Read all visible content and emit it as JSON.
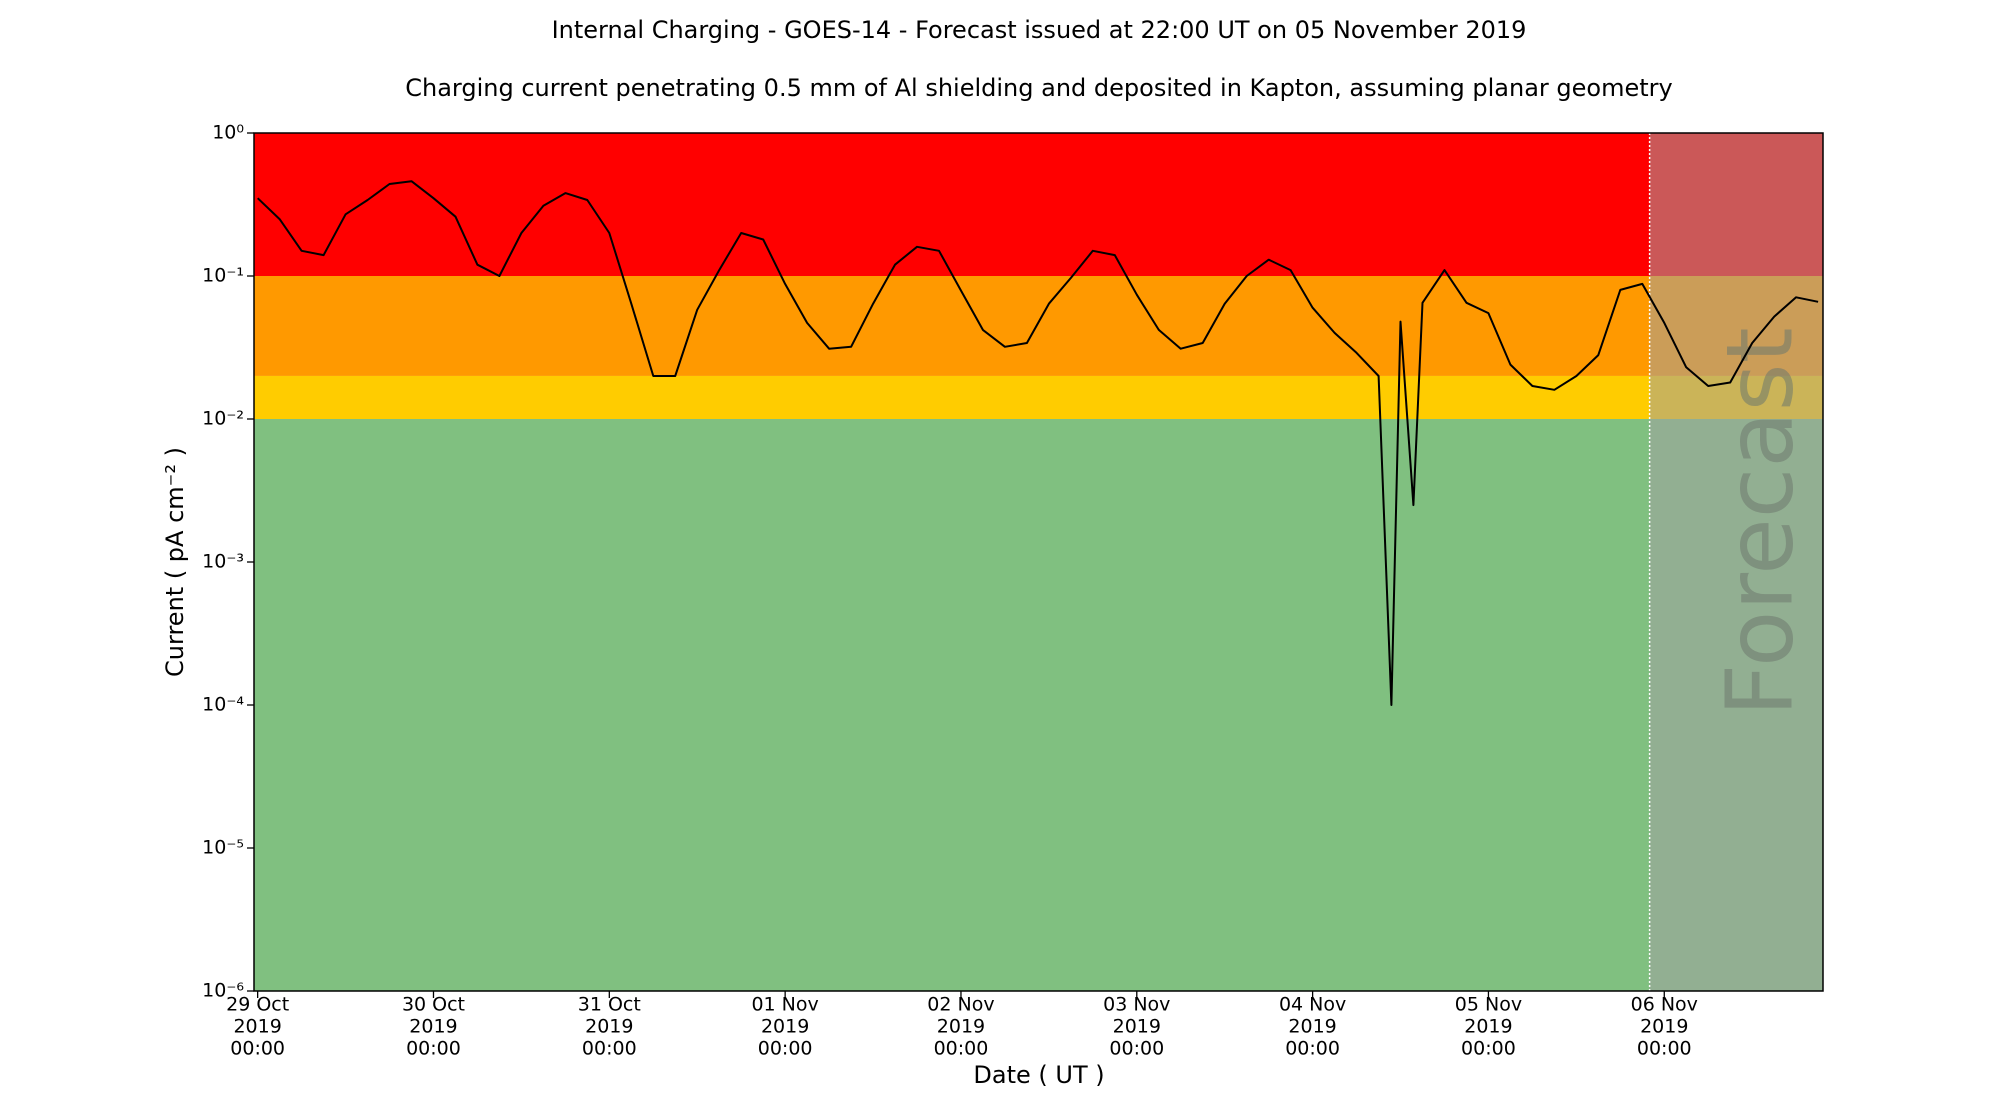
{
  "chart_data": {
    "type": "line",
    "title": "Internal Charging - GOES-14 - Forecast issued at 22:00 UT on 05 November 2019",
    "subtitle": "Charging current penetrating 0.5 mm of Al shielding and deposited in Kapton, assuming planar geometry",
    "x_label": "Date ( UT )",
    "y_label": "Current ( pA cm⁻² )",
    "log_y": true,
    "color": "#000000",
    "bands": [
      {
        "from": 0.1,
        "to": 1,
        "color": "#ff0000"
      },
      {
        "from": 0.02,
        "to": 0.1,
        "color": "#ff9900"
      },
      {
        "from": 0.01,
        "to": 0.02,
        "color": "#ffcc00"
      },
      {
        "from": 1e-06,
        "to": 0.01,
        "color": "#80c080"
      }
    ],
    "forecast_start": "2019-11-05 22:00",
    "forecast_label": "Forecast",
    "forecast_color": "rgba(160,160,160,0.55)",
    "xlim": [
      "2019-10-28 23:30",
      "2019-11-06 21:40"
    ],
    "ylim": [
      1e-06,
      1
    ],
    "xticks": [
      {
        "value": "2019-10-29 00:00",
        "label": [
          "29 Oct",
          "2019",
          "00:00"
        ]
      },
      {
        "value": "2019-10-30 00:00",
        "label": [
          "30 Oct",
          "2019",
          "00:00"
        ]
      },
      {
        "value": "2019-10-31 00:00",
        "label": [
          "31 Oct",
          "2019",
          "00:00"
        ]
      },
      {
        "value": "2019-11-01 00:00",
        "label": [
          "01 Nov",
          "2019",
          "00:00"
        ]
      },
      {
        "value": "2019-11-02 00:00",
        "label": [
          "02 Nov",
          "2019",
          "00:00"
        ]
      },
      {
        "value": "2019-11-03 00:00",
        "label": [
          "03 Nov",
          "2019",
          "00:00"
        ]
      },
      {
        "value": "2019-11-04 00:00",
        "label": [
          "04 Nov",
          "2019",
          "00:00"
        ]
      },
      {
        "value": "2019-11-05 00:00",
        "label": [
          "05 Nov",
          "2019",
          "00:00"
        ]
      },
      {
        "value": "2019-11-06 00:00",
        "label": [
          "06 Nov",
          "2019",
          "00:00"
        ]
      }
    ],
    "yticks": [
      {
        "value": 1e-06,
        "label": "10⁻⁶"
      },
      {
        "value": 1e-05,
        "label": "10⁻⁵"
      },
      {
        "value": 0.0001,
        "label": "10⁻⁴"
      },
      {
        "value": 0.001,
        "label": "10⁻³"
      },
      {
        "value": 0.01,
        "label": "10⁻²"
      },
      {
        "value": 0.1,
        "label": "10⁻¹"
      },
      {
        "value": 1,
        "label": "10⁰"
      }
    ],
    "x": [
      "2019-10-29 00:00",
      "2019-10-29 03:00",
      "2019-10-29 06:00",
      "2019-10-29 09:00",
      "2019-10-29 12:00",
      "2019-10-29 15:00",
      "2019-10-29 18:00",
      "2019-10-29 21:00",
      "2019-10-30 00:00",
      "2019-10-30 03:00",
      "2019-10-30 06:00",
      "2019-10-30 09:00",
      "2019-10-30 12:00",
      "2019-10-30 15:00",
      "2019-10-30 18:00",
      "2019-10-30 21:00",
      "2019-10-31 00:00",
      "2019-10-31 03:00",
      "2019-10-31 06:00",
      "2019-10-31 09:00",
      "2019-10-31 12:00",
      "2019-10-31 15:00",
      "2019-10-31 18:00",
      "2019-10-31 21:00",
      "2019-11-01 00:00",
      "2019-11-01 03:00",
      "2019-11-01 06:00",
      "2019-11-01 09:00",
      "2019-11-01 12:00",
      "2019-11-01 15:00",
      "2019-11-01 18:00",
      "2019-11-01 21:00",
      "2019-11-02 00:00",
      "2019-11-02 03:00",
      "2019-11-02 06:00",
      "2019-11-02 09:00",
      "2019-11-02 12:00",
      "2019-11-02 15:00",
      "2019-11-02 18:00",
      "2019-11-02 21:00",
      "2019-11-03 00:00",
      "2019-11-03 03:00",
      "2019-11-03 06:00",
      "2019-11-03 09:00",
      "2019-11-03 12:00",
      "2019-11-03 15:00",
      "2019-11-03 18:00",
      "2019-11-03 21:00",
      "2019-11-04 00:00",
      "2019-11-04 03:00",
      "2019-11-04 06:00",
      "2019-11-04 09:00",
      "2019-11-04 10:45",
      "2019-11-04 12:00",
      "2019-11-04 13:45",
      "2019-11-04 15:00",
      "2019-11-04 18:00",
      "2019-11-04 21:00",
      "2019-11-05 00:00",
      "2019-11-05 03:00",
      "2019-11-05 06:00",
      "2019-11-05 09:00",
      "2019-11-05 12:00",
      "2019-11-05 15:00",
      "2019-11-05 18:00",
      "2019-11-05 21:00",
      "2019-11-06 00:00",
      "2019-11-06 03:00",
      "2019-11-06 06:00",
      "2019-11-06 09:00",
      "2019-11-06 12:00",
      "2019-11-06 15:00",
      "2019-11-06 18:00",
      "2019-11-06 21:00"
    ],
    "values": [
      0.35,
      0.25,
      0.15,
      0.14,
      0.27,
      0.34,
      0.44,
      0.46,
      0.35,
      0.26,
      0.12,
      0.1,
      0.2,
      0.31,
      0.38,
      0.34,
      0.2,
      0.064,
      0.02,
      0.02,
      0.058,
      0.11,
      0.2,
      0.18,
      0.088,
      0.047,
      0.031,
      0.032,
      0.064,
      0.12,
      0.16,
      0.15,
      0.079,
      0.042,
      0.032,
      0.034,
      0.064,
      0.097,
      0.15,
      0.14,
      0.074,
      0.042,
      0.031,
      0.034,
      0.064,
      0.1,
      0.13,
      0.11,
      0.06,
      0.04,
      0.029,
      0.02,
      0.0001,
      0.048,
      0.0025,
      0.065,
      0.11,
      0.065,
      0.055,
      0.024,
      0.017,
      0.016,
      0.02,
      0.028,
      0.08,
      0.088,
      0.047,
      0.023,
      0.017,
      0.018,
      0.034,
      0.052,
      0.071,
      0.066
    ]
  }
}
